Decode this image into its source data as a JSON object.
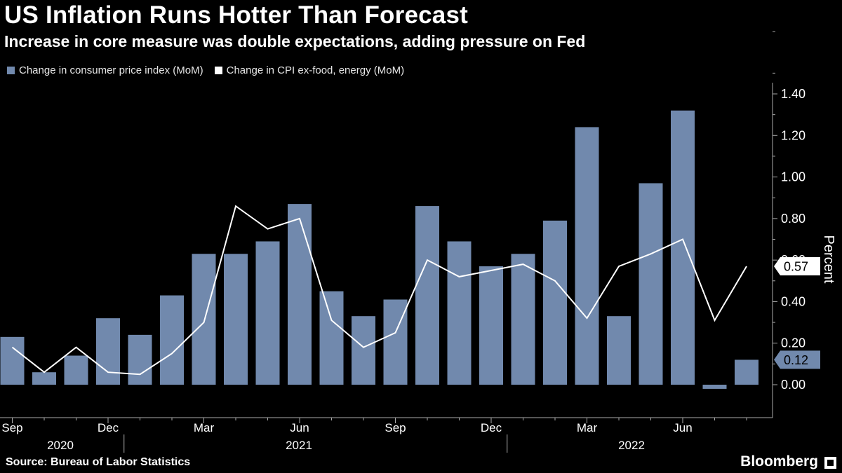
{
  "header": {
    "title": "US Inflation Runs Hotter Than Forecast",
    "subtitle": "Increase in core measure was double expectations, adding pressure on Fed"
  },
  "colors": {
    "background": "#000000",
    "bar": "#7189ad",
    "line": "#ffffff",
    "axis": "#aaaaaa"
  },
  "footer": {
    "source": "Source: Bureau of Labor Statistics",
    "brand": "Bloomberg"
  },
  "chart_data": {
    "type": "bar",
    "categories": [
      "2020-09",
      "2020-10",
      "2020-11",
      "2020-12",
      "2021-01",
      "2021-02",
      "2021-03",
      "2021-04",
      "2021-05",
      "2021-06",
      "2021-07",
      "2021-08",
      "2021-09",
      "2021-10",
      "2021-11",
      "2021-12",
      "2022-01",
      "2022-02",
      "2022-03",
      "2022-04",
      "2022-05",
      "2022-06",
      "2022-07",
      "2022-08"
    ],
    "series": [
      {
        "name": "Change in consumer price index (MoM)",
        "type": "bar",
        "values": [
          0.23,
          0.06,
          0.14,
          0.32,
          0.24,
          0.43,
          0.63,
          0.63,
          0.69,
          0.87,
          0.45,
          0.33,
          0.41,
          0.86,
          0.69,
          0.57,
          0.63,
          0.79,
          1.24,
          0.33,
          0.97,
          1.32,
          -0.02,
          0.12
        ]
      },
      {
        "name": "Change in CPI ex-food, energy (MoM)",
        "type": "line",
        "values": [
          0.18,
          0.06,
          0.18,
          0.06,
          0.05,
          0.15,
          0.3,
          0.86,
          0.75,
          0.8,
          0.31,
          0.18,
          0.25,
          0.6,
          0.52,
          0.55,
          0.58,
          0.5,
          0.32,
          0.57,
          0.63,
          0.7,
          0.31,
          0.57
        ]
      }
    ],
    "ylabel": "Percent",
    "ylim": [
      -0.15,
      1.45
    ],
    "y_ticks": [
      "0.00",
      "0.20",
      "0.40",
      "0.60",
      "0.80",
      "1.00",
      "1.20",
      "1.40"
    ],
    "x_ticks": [
      {
        "index": 0,
        "label": "Sep"
      },
      {
        "index": 3,
        "label": "Dec"
      },
      {
        "index": 6,
        "label": "Mar"
      },
      {
        "index": 9,
        "label": "Jun"
      },
      {
        "index": 12,
        "label": "Sep"
      },
      {
        "index": 15,
        "label": "Dec"
      },
      {
        "index": 18,
        "label": "Mar"
      },
      {
        "index": 21,
        "label": "Jun"
      }
    ],
    "year_labels": [
      {
        "label": "2020",
        "from": 0,
        "to": 3
      },
      {
        "label": "2021",
        "from": 4,
        "to": 15
      },
      {
        "label": "2022",
        "from": 16,
        "to": 23
      }
    ],
    "callouts": [
      {
        "label": "0.57",
        "value": 0.57,
        "series": 1
      },
      {
        "label": "0.12",
        "value": 0.12,
        "series": 0
      }
    ],
    "grid": false,
    "legend_position": "top-left"
  }
}
